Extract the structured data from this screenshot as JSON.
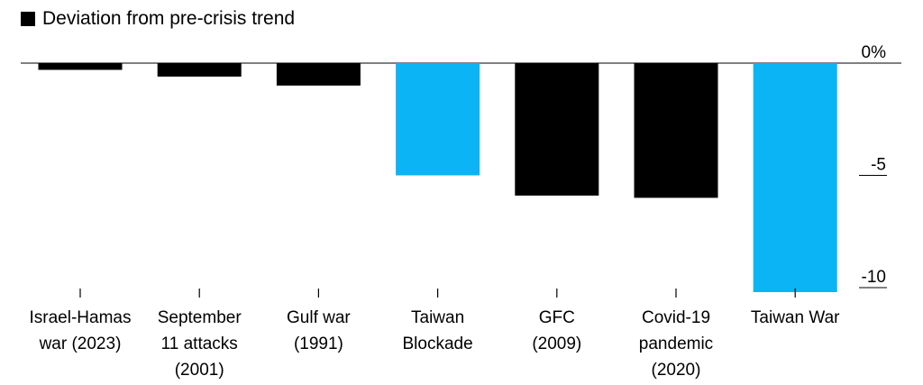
{
  "legend": {
    "label": "Deviation from pre-crisis trend",
    "color": "#000000"
  },
  "colors": {
    "default_bar": "#000000",
    "highlight_bar": "#0ab4f5",
    "axis": "#000000"
  },
  "chart_data": {
    "type": "bar",
    "title": "",
    "xlabel": "",
    "ylabel": "",
    "ylim": [
      -10.2,
      0
    ],
    "y_ticks": [
      {
        "value": 0,
        "label": "0%"
      },
      {
        "value": -5,
        "label": "-5"
      },
      {
        "value": -10,
        "label": "-10"
      }
    ],
    "categories": [
      [
        "Israel-Hamas",
        "war (2023)"
      ],
      [
        "September",
        "11 attacks",
        "(2001)"
      ],
      [
        "Gulf war",
        "(1991)"
      ],
      [
        "Taiwan",
        "Blockade"
      ],
      [
        "GFC",
        "(2009)"
      ],
      [
        "Covid-19",
        "pandemic",
        "(2020)"
      ],
      [
        "Taiwan War"
      ]
    ],
    "series": [
      {
        "name": "Deviation from pre-crisis trend",
        "values": [
          -0.3,
          -0.6,
          -1.0,
          -5.0,
          -5.9,
          -6.0,
          -10.2
        ],
        "highlight": [
          false,
          false,
          false,
          true,
          false,
          false,
          true
        ]
      }
    ],
    "grid": false,
    "legend_position": "top-left"
  }
}
